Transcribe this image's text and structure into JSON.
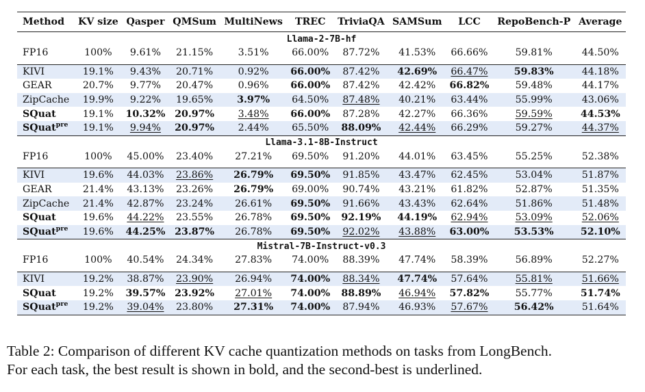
{
  "table": {
    "columns": [
      "Method",
      "KV size",
      "Qasper",
      "QMSum",
      "MultiNews",
      "TREC",
      "TriviaQA",
      "SAMSum",
      "LCC",
      "RepoBench-P",
      "Average"
    ],
    "sections": [
      {
        "model": "Llama-2-7B-hf",
        "baseline": {
          "method": "FP16",
          "cells": [
            [
              "100%",
              ""
            ],
            [
              "9.61%",
              ""
            ],
            [
              "21.15%",
              ""
            ],
            [
              "3.51%",
              ""
            ],
            [
              "66.00%",
              ""
            ],
            [
              "87.72%",
              ""
            ],
            [
              "41.53%",
              ""
            ],
            [
              "66.66%",
              ""
            ],
            [
              "59.81%",
              ""
            ],
            [
              "44.50%",
              ""
            ]
          ]
        },
        "rows": [
          {
            "method": "KIVI",
            "sup": "",
            "bold_name": false,
            "cells": [
              [
                "19.1%",
                ""
              ],
              [
                "9.43%",
                ""
              ],
              [
                "20.71%",
                ""
              ],
              [
                "0.92%",
                ""
              ],
              [
                "66.00%",
                "b"
              ],
              [
                "87.42%",
                ""
              ],
              [
                "42.69%",
                "b"
              ],
              [
                "66.47%",
                "u"
              ],
              [
                "59.83%",
                "b"
              ],
              [
                "44.18%",
                ""
              ]
            ]
          },
          {
            "method": "GEAR",
            "sup": "",
            "bold_name": false,
            "cells": [
              [
                "20.7%",
                ""
              ],
              [
                "9.77%",
                ""
              ],
              [
                "20.47%",
                ""
              ],
              [
                "0.96%",
                ""
              ],
              [
                "66.00%",
                "b"
              ],
              [
                "87.42%",
                ""
              ],
              [
                "42.42%",
                ""
              ],
              [
                "66.82%",
                "b"
              ],
              [
                "59.48%",
                ""
              ],
              [
                "44.17%",
                ""
              ]
            ]
          },
          {
            "method": "ZipCache",
            "sup": "",
            "bold_name": false,
            "cells": [
              [
                "19.9%",
                ""
              ],
              [
                "9.22%",
                ""
              ],
              [
                "19.65%",
                ""
              ],
              [
                "3.97%",
                "b"
              ],
              [
                "64.50%",
                ""
              ],
              [
                "87.48%",
                "u"
              ],
              [
                "40.21%",
                ""
              ],
              [
                "63.44%",
                ""
              ],
              [
                "55.99%",
                ""
              ],
              [
                "43.06%",
                ""
              ]
            ]
          },
          {
            "method": "SQuat",
            "sup": "",
            "bold_name": true,
            "cells": [
              [
                "19.1%",
                ""
              ],
              [
                "10.32%",
                "b"
              ],
              [
                "20.97%",
                "b"
              ],
              [
                "3.48%",
                "u"
              ],
              [
                "66.00%",
                "b"
              ],
              [
                "87.28%",
                ""
              ],
              [
                "42.27%",
                ""
              ],
              [
                "66.36%",
                ""
              ],
              [
                "59.59%",
                "u"
              ],
              [
                "44.53%",
                "b"
              ]
            ]
          },
          {
            "method": "SQuat",
            "sup": "pre",
            "bold_name": true,
            "cells": [
              [
                "19.1%",
                ""
              ],
              [
                "9.94%",
                "u"
              ],
              [
                "20.97%",
                "b"
              ],
              [
                "2.44%",
                ""
              ],
              [
                "65.50%",
                ""
              ],
              [
                "88.09%",
                "b"
              ],
              [
                "42.44%",
                "u"
              ],
              [
                "66.29%",
                ""
              ],
              [
                "59.27%",
                ""
              ],
              [
                "44.37%",
                "u"
              ]
            ]
          }
        ]
      },
      {
        "model": "Llama-3.1-8B-Instruct",
        "baseline": {
          "method": "FP16",
          "cells": [
            [
              "100%",
              ""
            ],
            [
              "45.00%",
              ""
            ],
            [
              "23.40%",
              ""
            ],
            [
              "27.21%",
              ""
            ],
            [
              "69.50%",
              ""
            ],
            [
              "91.20%",
              ""
            ],
            [
              "44.01%",
              ""
            ],
            [
              "63.45%",
              ""
            ],
            [
              "55.25%",
              ""
            ],
            [
              "52.38%",
              ""
            ]
          ]
        },
        "rows": [
          {
            "method": "KIVI",
            "sup": "",
            "bold_name": false,
            "cells": [
              [
                "19.6%",
                ""
              ],
              [
                "44.03%",
                ""
              ],
              [
                "23.86%",
                "u"
              ],
              [
                "26.79%",
                "b"
              ],
              [
                "69.50%",
                "b"
              ],
              [
                "91.85%",
                ""
              ],
              [
                "43.47%",
                ""
              ],
              [
                "62.45%",
                ""
              ],
              [
                "53.04%",
                ""
              ],
              [
                "51.87%",
                ""
              ]
            ]
          },
          {
            "method": "GEAR",
            "sup": "",
            "bold_name": false,
            "cells": [
              [
                "21.4%",
                ""
              ],
              [
                "43.13%",
                ""
              ],
              [
                "23.26%",
                ""
              ],
              [
                "26.79%",
                "b"
              ],
              [
                "69.00%",
                ""
              ],
              [
                "90.74%",
                ""
              ],
              [
                "43.21%",
                ""
              ],
              [
                "61.82%",
                ""
              ],
              [
                "52.87%",
                ""
              ],
              [
                "51.35%",
                ""
              ]
            ]
          },
          {
            "method": "ZipCache",
            "sup": "",
            "bold_name": false,
            "cells": [
              [
                "21.4%",
                ""
              ],
              [
                "42.87%",
                ""
              ],
              [
                "23.24%",
                ""
              ],
              [
                "26.61%",
                ""
              ],
              [
                "69.50%",
                "b"
              ],
              [
                "91.66%",
                ""
              ],
              [
                "43.43%",
                ""
              ],
              [
                "62.64%",
                ""
              ],
              [
                "51.86%",
                ""
              ],
              [
                "51.48%",
                ""
              ]
            ]
          },
          {
            "method": "SQuat",
            "sup": "",
            "bold_name": true,
            "cells": [
              [
                "19.6%",
                ""
              ],
              [
                "44.22%",
                "u"
              ],
              [
                "23.55%",
                ""
              ],
              [
                "26.78%",
                ""
              ],
              [
                "69.50%",
                "b"
              ],
              [
                "92.19%",
                "b"
              ],
              [
                "44.19%",
                "b"
              ],
              [
                "62.94%",
                "u"
              ],
              [
                "53.09%",
                "u"
              ],
              [
                "52.06%",
                "u"
              ]
            ]
          },
          {
            "method": "SQuat",
            "sup": "pre",
            "bold_name": true,
            "cells": [
              [
                "19.6%",
                ""
              ],
              [
                "44.25%",
                "b"
              ],
              [
                "23.87%",
                "b"
              ],
              [
                "26.78%",
                ""
              ],
              [
                "69.50%",
                "b"
              ],
              [
                "92.02%",
                "u"
              ],
              [
                "43.88%",
                "u"
              ],
              [
                "63.00%",
                "b"
              ],
              [
                "53.53%",
                "b"
              ],
              [
                "52.10%",
                "b"
              ]
            ]
          }
        ]
      },
      {
        "model": "Mistral-7B-Instruct-v0.3",
        "baseline": {
          "method": "FP16",
          "cells": [
            [
              "100%",
              ""
            ],
            [
              "40.54%",
              ""
            ],
            [
              "24.34%",
              ""
            ],
            [
              "27.83%",
              ""
            ],
            [
              "74.00%",
              ""
            ],
            [
              "88.39%",
              ""
            ],
            [
              "47.74%",
              ""
            ],
            [
              "58.39%",
              ""
            ],
            [
              "56.89%",
              ""
            ],
            [
              "52.27%",
              ""
            ]
          ]
        },
        "rows": [
          {
            "method": "KIVI",
            "sup": "",
            "bold_name": false,
            "cells": [
              [
                "19.2%",
                ""
              ],
              [
                "38.87%",
                ""
              ],
              [
                "23.90%",
                "u"
              ],
              [
                "26.94%",
                ""
              ],
              [
                "74.00%",
                "b"
              ],
              [
                "88.34%",
                "u"
              ],
              [
                "47.74%",
                "b"
              ],
              [
                "57.64%",
                ""
              ],
              [
                "55.81%",
                "u"
              ],
              [
                "51.66%",
                "u"
              ]
            ]
          },
          {
            "method": "SQuat",
            "sup": "",
            "bold_name": true,
            "cells": [
              [
                "19.2%",
                ""
              ],
              [
                "39.57%",
                "b"
              ],
              [
                "23.92%",
                "b"
              ],
              [
                "27.01%",
                "u"
              ],
              [
                "74.00%",
                "b"
              ],
              [
                "88.89%",
                "b"
              ],
              [
                "46.94%",
                "u"
              ],
              [
                "57.82%",
                "b"
              ],
              [
                "55.77%",
                ""
              ],
              [
                "51.74%",
                "b"
              ]
            ]
          },
          {
            "method": "SQuat",
            "sup": "pre",
            "bold_name": true,
            "cells": [
              [
                "19.2%",
                ""
              ],
              [
                "39.04%",
                "u"
              ],
              [
                "23.80%",
                ""
              ],
              [
                "27.31%",
                "b"
              ],
              [
                "74.00%",
                "b"
              ],
              [
                "87.94%",
                ""
              ],
              [
                "46.93%",
                ""
              ],
              [
                "57.67%",
                "u"
              ],
              [
                "56.42%",
                "b"
              ],
              [
                "51.64%",
                ""
              ]
            ]
          }
        ]
      }
    ]
  },
  "caption": {
    "line1": "Table 2: Comparison of different KV cache quantization methods on tasks from LongBench.",
    "line2": "For each task, the best result is shown in bold, and the second-best is underlined."
  }
}
